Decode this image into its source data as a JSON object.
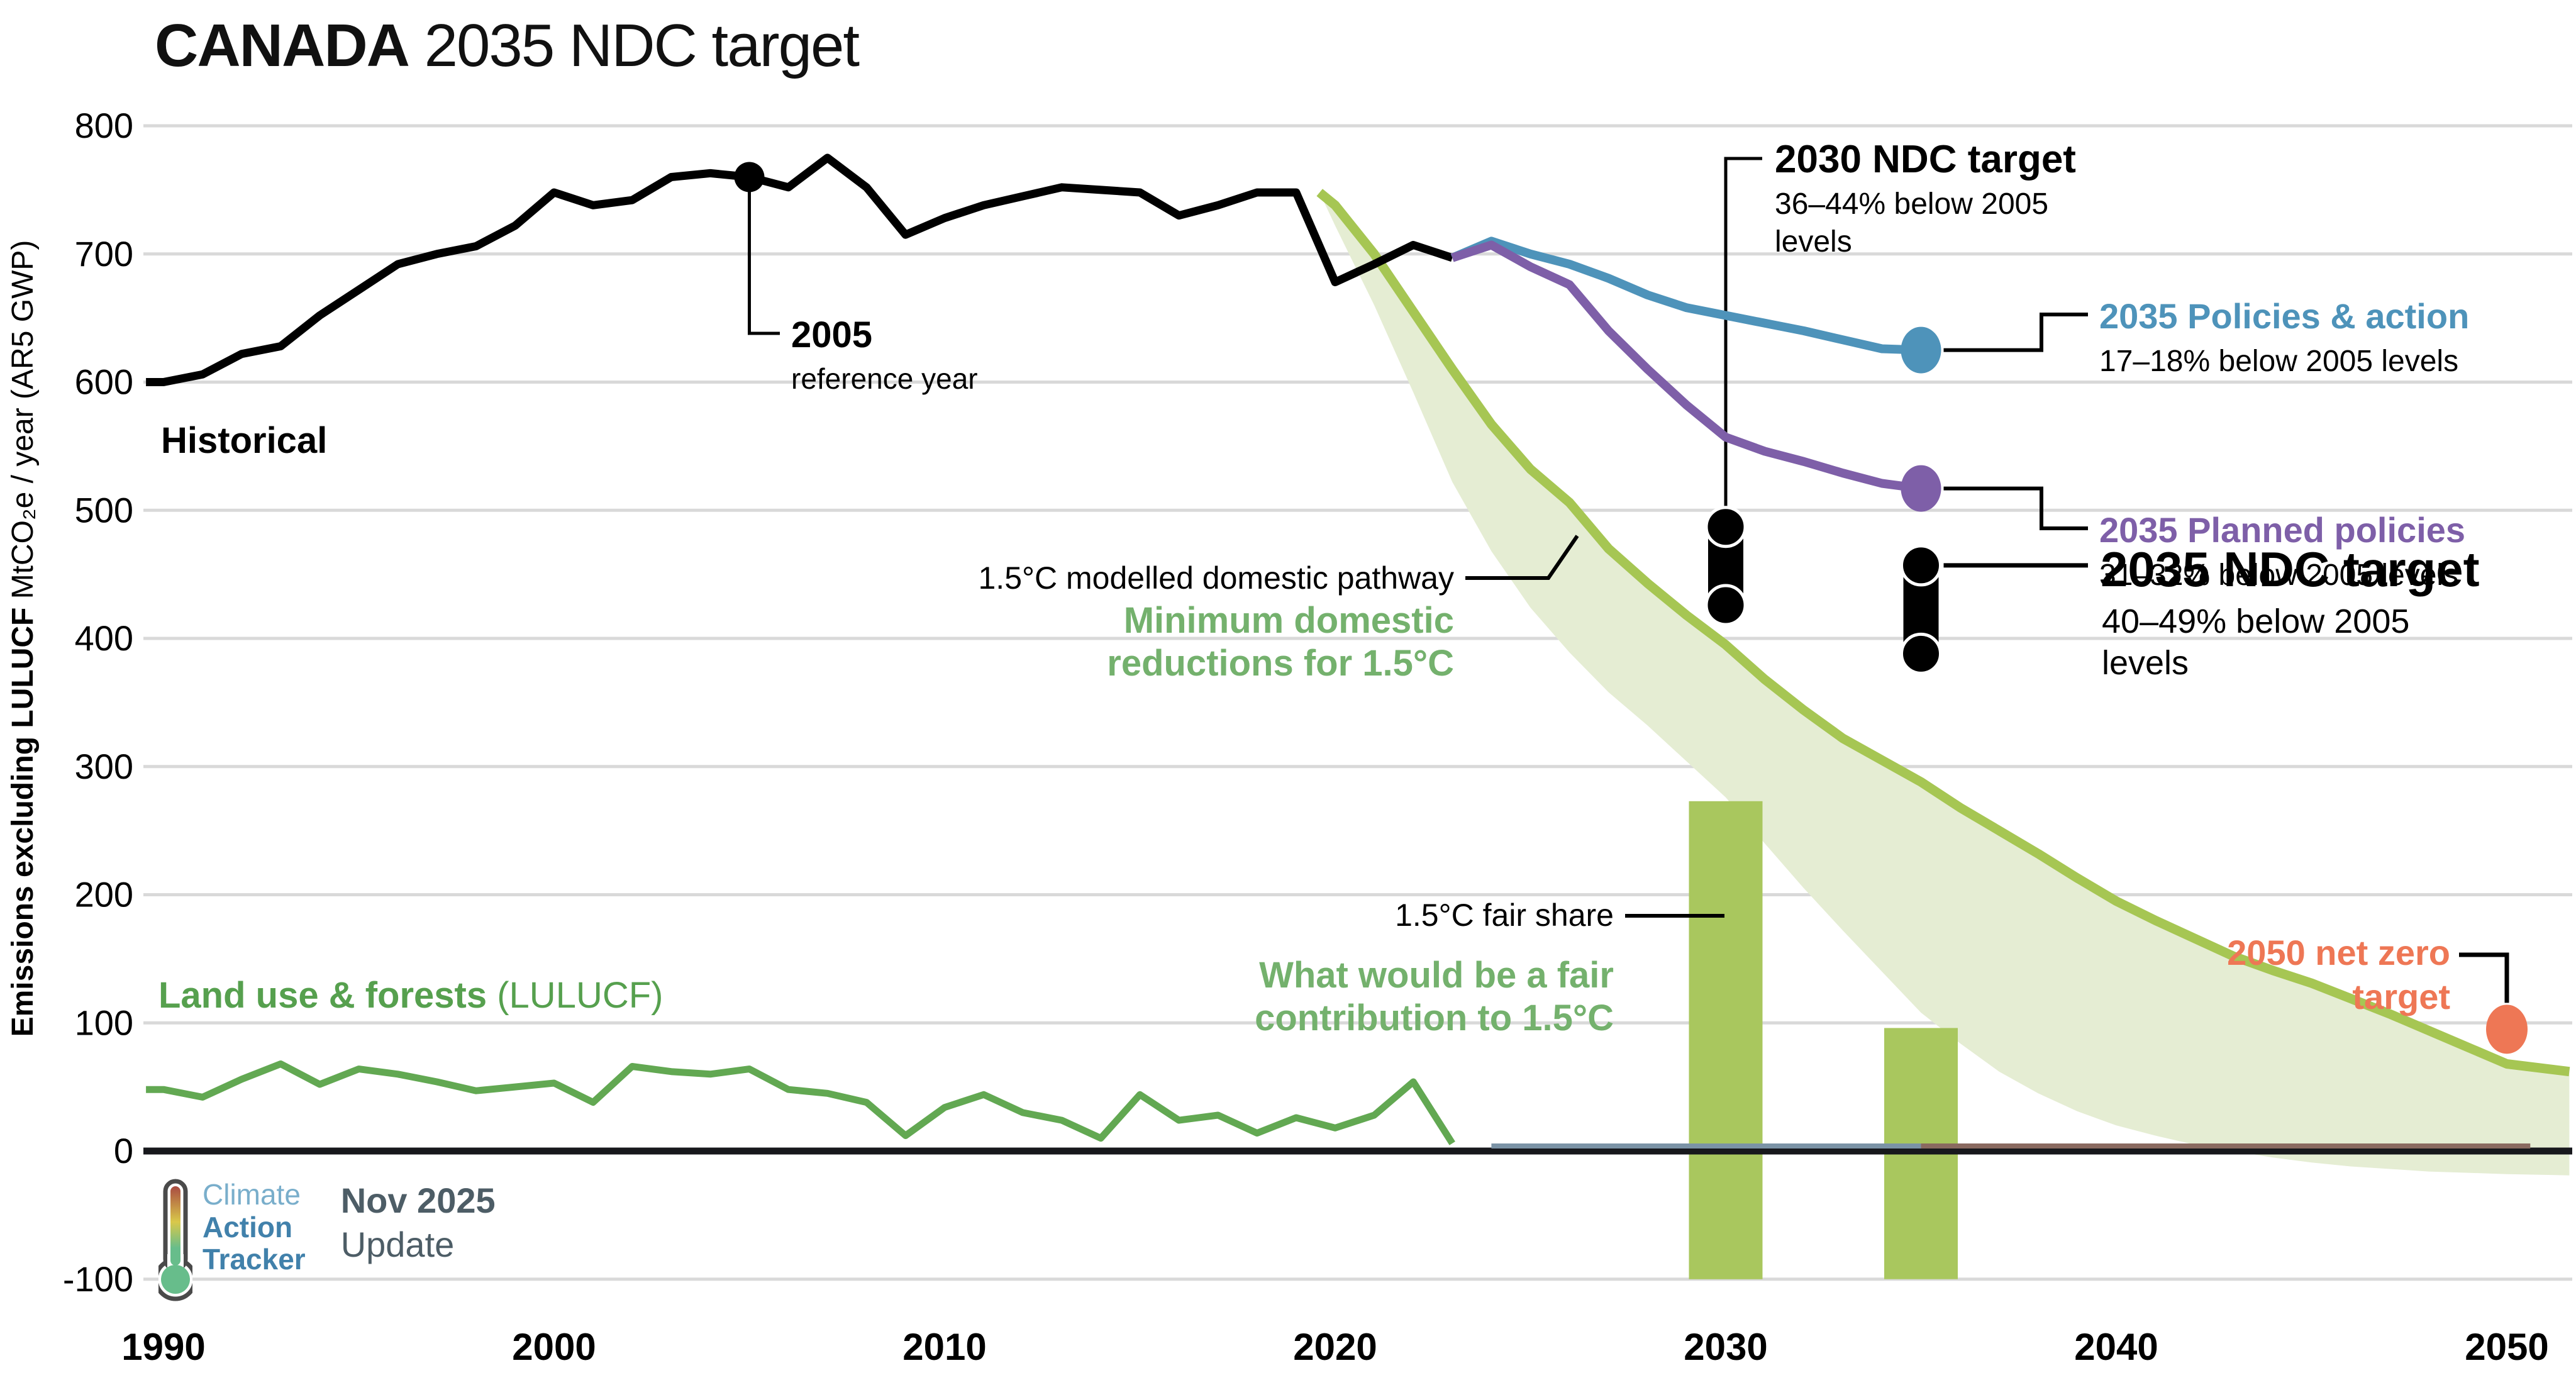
{
  "title": {
    "bold": "CANADA",
    "rest": " 2035 NDC target"
  },
  "branding": {
    "logo_line1": "Climate",
    "logo_line2": "Action",
    "logo_line3": "Tracker",
    "date": "Nov 2025",
    "update": "Update",
    "thermometer_icon": "thermometer-icon"
  },
  "colors": {
    "blue": "#4e93ba",
    "purple": "#7e5fa8",
    "orange": "#ee7755",
    "pathway_line": "#a6c653",
    "band_fill": "#e5edd3",
    "bar_fill": "#a9c75e",
    "lulucf_line": "#62a852",
    "lulucf_text": "#56a04e",
    "green_text": "#74b16d",
    "grid": "#d9d9d9",
    "axis_dark": "#17181c",
    "black": "#000000",
    "zero_overlay_blue": "#7b93a6",
    "zero_overlay_brown": "#8a6a60"
  },
  "annotations": {
    "historical_label": "Historical",
    "ref_2005": {
      "title": "2005",
      "sub": "reference year"
    },
    "ndc_2030": {
      "title": "2030 NDC target",
      "sub1": "36–44% below 2005",
      "sub2": "levels"
    },
    "ndc_2035": {
      "title": "2035 NDC target",
      "sub1": "40–49% below 2005",
      "sub2": "levels"
    },
    "policies_2035": {
      "title": "2035 Policies & action",
      "sub": "17–18% below 2005 levels"
    },
    "planned_2035": {
      "title": "2035 Planned policies",
      "sub": "31–32% below 2005 levels"
    },
    "pathway": {
      "label": "1.5°C modelled domestic pathway",
      "green1": "Minimum domestic",
      "green2": "reductions for 1.5°C"
    },
    "fair_share": {
      "label": "1.5°C fair share",
      "green1": "What would be a fair",
      "green2": "contribution to 1.5°C"
    },
    "net_zero": {
      "line1": "2050 net zero",
      "line2": "target"
    },
    "lulucf_label": {
      "bold": "Land use & forests",
      "normal": " (LULUCF)"
    }
  },
  "chart_data": {
    "type": "line",
    "title": "CANADA 2035 NDC target",
    "ylabel_bold": "Emissions excluding LULUCF",
    "ylabel_rest": "  MtCO₂e / year (AR5 GWP)",
    "xlabel": "",
    "x_ticks": [
      1990,
      2000,
      2010,
      2020,
      2030,
      2040,
      2050
    ],
    "y_ticks": [
      800,
      700,
      600,
      500,
      400,
      300,
      200,
      100,
      0,
      -100
    ],
    "xlim": [
      1989.5,
      2051.6
    ],
    "ylim": [
      -100,
      800
    ],
    "grid": true,
    "series": {
      "historical": {
        "name": "Historical",
        "color": "#000000",
        "start_year": 1990,
        "values": [
          600,
          606,
          622,
          628,
          652,
          672,
          692,
          700,
          706,
          722,
          748,
          738,
          742,
          760,
          763,
          760,
          752,
          775,
          752,
          715,
          728,
          738,
          745,
          752,
          750,
          748,
          730,
          738,
          748,
          748,
          678,
          692,
          707,
          697
        ]
      },
      "policies_action": {
        "name": "2035 Policies & action",
        "color": "#4e93ba",
        "start_year": 2023,
        "values": [
          697,
          710,
          700,
          692,
          681,
          668,
          658,
          652,
          646,
          640,
          633,
          626,
          625
        ]
      },
      "planned_policies": {
        "name": "2035 Planned policies",
        "color": "#7e5fa8",
        "start_year": 2023,
        "values": [
          697,
          707,
          690,
          676,
          640,
          610,
          582,
          557,
          546,
          538,
          529,
          521,
          517
        ]
      },
      "modelled_domestic_pathway": {
        "name": "1.5°C modelled domestic pathway",
        "color": "#a6c653",
        "points": [
          [
            2019.6,
            748
          ],
          [
            2020,
            738
          ],
          [
            2021,
            700
          ],
          [
            2022,
            655
          ],
          [
            2023,
            610
          ],
          [
            2024,
            567
          ],
          [
            2025,
            532
          ],
          [
            2026,
            506
          ],
          [
            2027,
            470
          ],
          [
            2028,
            443
          ],
          [
            2029,
            418
          ],
          [
            2030,
            395
          ],
          [
            2031,
            368
          ],
          [
            2032,
            344
          ],
          [
            2033,
            322
          ],
          [
            2034,
            305
          ],
          [
            2035,
            288
          ],
          [
            2036,
            268
          ],
          [
            2037,
            250
          ],
          [
            2038,
            232
          ],
          [
            2039,
            213
          ],
          [
            2040,
            195
          ],
          [
            2041,
            180
          ],
          [
            2042,
            166
          ],
          [
            2043,
            152
          ],
          [
            2044,
            141
          ],
          [
            2045,
            131
          ],
          [
            2046,
            119
          ],
          [
            2047,
            107
          ],
          [
            2048,
            94
          ],
          [
            2049,
            81
          ],
          [
            2050,
            68
          ],
          [
            2051.6,
            62
          ]
        ]
      },
      "pathway_band_lower": {
        "name": "1.5°C fair share band lower bound",
        "points": [
          [
            2019.6,
            748
          ],
          [
            2020,
            722
          ],
          [
            2021,
            660
          ],
          [
            2022,
            592
          ],
          [
            2023,
            522
          ],
          [
            2024,
            468
          ],
          [
            2025,
            424
          ],
          [
            2026,
            389
          ],
          [
            2027,
            358
          ],
          [
            2028,
            332
          ],
          [
            2029,
            304
          ],
          [
            2030,
            276
          ],
          [
            2031,
            240
          ],
          [
            2032,
            205
          ],
          [
            2033,
            172
          ],
          [
            2034,
            140
          ],
          [
            2035,
            108
          ],
          [
            2036,
            84
          ],
          [
            2037,
            62
          ],
          [
            2038,
            45
          ],
          [
            2039,
            31
          ],
          [
            2040,
            20
          ],
          [
            2041,
            12
          ],
          [
            2042,
            5
          ],
          [
            2043,
            0
          ],
          [
            2044,
            -5
          ],
          [
            2045,
            -9
          ],
          [
            2046,
            -12
          ],
          [
            2047,
            -14
          ],
          [
            2048,
            -16
          ],
          [
            2049,
            -17
          ],
          [
            2050,
            -18
          ],
          [
            2051.6,
            -19
          ]
        ]
      },
      "lulucf": {
        "name": "Land use & forests (LULUCF)",
        "color": "#62a852",
        "start_year": 1990,
        "values": [
          48,
          42,
          56,
          68,
          52,
          64,
          60,
          54,
          47,
          50,
          53,
          38,
          66,
          62,
          60,
          64,
          48,
          45,
          38,
          12,
          34,
          44,
          30,
          24,
          10,
          44,
          24,
          28,
          14,
          26,
          18,
          28,
          54,
          6
        ]
      }
    },
    "markers": {
      "ndc_2030": {
        "year": 2030,
        "range": [
          426,
          487
        ],
        "label": "2030 NDC target"
      },
      "ndc_2035": {
        "year": 2035,
        "range": [
          388,
          457
        ],
        "label": "2035 NDC target"
      },
      "fair_share_bars": [
        {
          "year": 2030,
          "top": 273,
          "bottom": -100
        },
        {
          "year": 2035,
          "top": 96,
          "bottom": -100
        }
      ],
      "ref_2005": {
        "year": 2005,
        "value": 760
      },
      "policies_dot": {
        "year": 2035,
        "value": 625
      },
      "planned_dot": {
        "year": 2035,
        "value": 517
      },
      "net_zero_2050": {
        "year": 2050,
        "value": 95
      }
    },
    "zero_line_overlays": [
      {
        "from": 2024,
        "to": 2035,
        "color": "#7b93a6"
      },
      {
        "from": 2035,
        "to": 2050.6,
        "color": "#8a6a60"
      }
    ]
  }
}
